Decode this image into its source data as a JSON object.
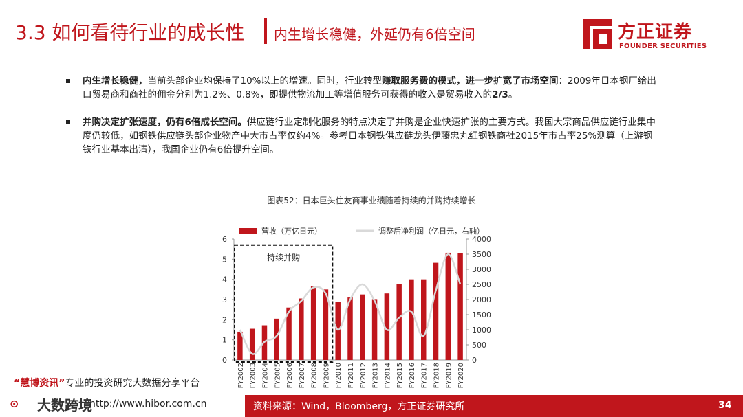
{
  "header": {
    "title_main": "3.3 如何看待行业的成长性",
    "title_sub": "内生增长稳健，外延仍有6倍空间",
    "logo_cn": "方正证券",
    "logo_en": "FOUNDER SECURITIES"
  },
  "bullets": [
    {
      "head": "内生增长稳健，",
      "text1": "当前头部企业均保持了10%以上的增速。同时，行业转型",
      "bold1": "赚取服务费的模式，进一步扩宽了市场空间",
      "text2": "：2009年日本钢厂给出口贸易商和商社的佣金分别为1.2%、0.8%，即提供物流加工等增值服务可获得的收入是贸易收入的",
      "bold2": "2/3",
      "text3": "。"
    },
    {
      "head": "并购决定扩张速度，仍有6倍成长空间。",
      "text1": "供应链行业定制化服务的特点决定了并购是企业快速扩张的主要方式。我国大宗商品供应链行业集中度仍较低，如钢铁供应链头部企业物产中大市占率仅约4%。参考日本钢铁供应链龙头伊藤忠丸红钢铁商社2015年市占率25%测算（上游钢铁行业基本出清），我国企业仍有6倍提升空间。"
    }
  ],
  "caption": "图表52：日本巨头住友商事业绩随着持续的并购持续增长",
  "chart_data": {
    "type": "bar",
    "categories": [
      "FY2002",
      "FY2003",
      "FY2004",
      "FY2005",
      "FY2006",
      "FY2007",
      "FY2008",
      "FY2009",
      "FY2010",
      "FY2011",
      "FY2012",
      "FY2013",
      "FY2014",
      "FY2015",
      "FY2016",
      "FY2017",
      "FY2018",
      "FY2019",
      "FY2020"
    ],
    "series": [
      {
        "name": "营收（万亿日元）",
        "type": "bar",
        "axis": "left",
        "color": "#c0161c",
        "values": [
          1.4,
          1.55,
          1.72,
          2.05,
          2.6,
          3.05,
          3.65,
          3.5,
          2.88,
          3.1,
          3.25,
          3.02,
          3.3,
          3.75,
          4.0,
          4.0,
          4.82,
          5.32,
          5.3
        ]
      },
      {
        "name": "调整后净利润（亿日元，右轴）",
        "type": "line",
        "axis": "right",
        "color": "#d9d9d9",
        "values": [
          1000,
          200,
          600,
          800,
          1600,
          1950,
          2400,
          2200,
          1000,
          2000,
          2500,
          1950,
          1000,
          1400,
          1600,
          800,
          2300,
          3500,
          2500
        ]
      }
    ],
    "ylim_left": [
      0,
      6
    ],
    "left_ticks": [
      "0",
      "1",
      "2",
      "3",
      "4",
      "5",
      "6"
    ],
    "ylim_right": [
      0,
      4000
    ],
    "right_ticks": [
      "0",
      "500",
      "1000",
      "1500",
      "2000",
      "2500",
      "3000",
      "3500",
      "4000"
    ],
    "annotation": {
      "label": "持续并购",
      "from": "FY2002",
      "to": "FY2009"
    },
    "legend": "top"
  },
  "watermark": {
    "highlight": "“慧博资讯”",
    "text": "专业的投资研究大数据分享平台"
  },
  "bottom_logo": "大数跨境",
  "url": "http://www.hibor.com.cn",
  "footer": {
    "source": "资料来源：Wind，Bloomberg，方正证券研究所",
    "page": "34"
  }
}
